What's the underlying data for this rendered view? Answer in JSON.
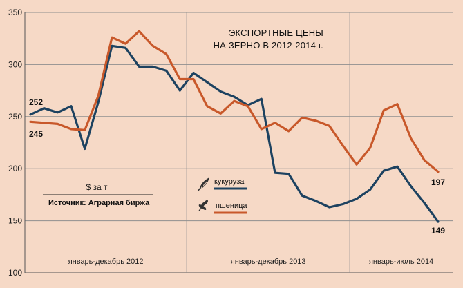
{
  "chart_data": {
    "type": "line",
    "title_lines": [
      "ЭКСПОРТНЫЕ ЦЕНЫ",
      "НА ЗЕРНО В 2012-2014 г."
    ],
    "unit": "$ за т",
    "source": "Источник: Аграрная биржа",
    "ylim": [
      100,
      350
    ],
    "yticks": [
      100,
      150,
      200,
      250,
      300,
      350
    ],
    "grid": true,
    "periods": [
      {
        "label": "январь-декабрь 2012",
        "start": 0,
        "end": 11
      },
      {
        "label": "январь-декабрь 2013",
        "start": 12,
        "end": 23
      },
      {
        "label": "январь-июль 2014",
        "start": 24,
        "end": 30
      }
    ],
    "n_points": 31,
    "series": [
      {
        "name": "кукуруза",
        "color": "#1d4260",
        "icon": "corn-icon",
        "values": [
          252,
          258,
          254,
          260,
          219,
          264,
          318,
          316,
          298,
          298,
          294,
          275,
          292,
          283,
          274,
          269,
          261,
          267,
          196,
          195,
          174,
          169,
          163,
          166,
          171,
          180,
          198,
          202,
          183,
          167,
          149
        ],
        "start_label": "252",
        "end_label": "149"
      },
      {
        "name": "пшеница",
        "color": "#c8582a",
        "icon": "wheat-icon",
        "values": [
          245,
          244,
          243,
          238,
          237,
          270,
          326,
          320,
          332,
          318,
          310,
          286,
          286,
          260,
          253,
          265,
          260,
          238,
          244,
          236,
          249,
          246,
          241,
          222,
          204,
          220,
          256,
          262,
          229,
          208,
          197
        ],
        "start_label": "245",
        "end_label": "197"
      }
    ]
  }
}
